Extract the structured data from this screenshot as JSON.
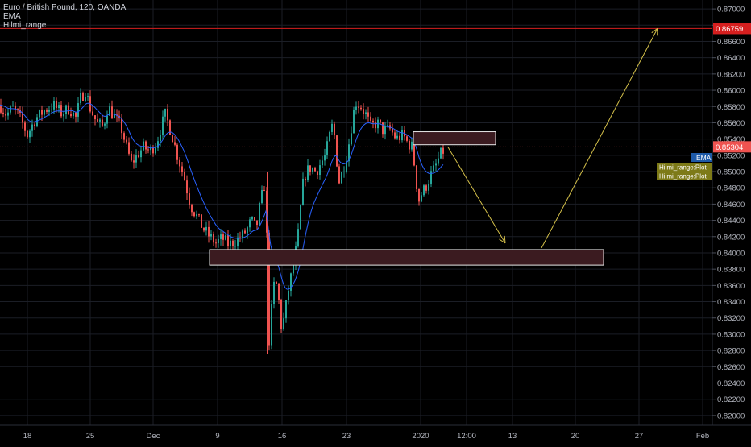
{
  "legend": {
    "symbol_line": "Euro / British Pound, 120, OANDA",
    "ema_label": "EMA",
    "range_label": "Hilmi_range"
  },
  "colors": {
    "background": "#000000",
    "grid": "#1b1e26",
    "up_candle": "#26a69a",
    "down_candle": "#ef5350",
    "ema_line": "#2962ff",
    "red_level": "#d61f1f",
    "arrow": "#d4c04a",
    "zone_fill": "#3b1b20",
    "zone_border": "#e8e8e8",
    "axis_text": "#b2b5be",
    "ema_tag": "#1e5aa8",
    "plot_tag": "#7d7a17"
  },
  "icons": {
    "arrow_up": "arrow-up-icon",
    "arrow_down": "arrow-down-icon"
  },
  "price_axis": {
    "ticks": [
      "0.87000",
      "0.86800",
      "0.86600",
      "0.86400",
      "0.86200",
      "0.86000",
      "0.85800",
      "0.85600",
      "0.85400",
      "0.85200",
      "0.85000",
      "0.84800",
      "0.84600",
      "0.84400",
      "0.84200",
      "0.84000",
      "0.83800",
      "0.83600",
      "0.83400",
      "0.83200",
      "0.83000",
      "0.82800",
      "0.82600",
      "0.82400",
      "0.82200",
      "0.82000"
    ],
    "red_level_label": "0.86759",
    "last_price_label": "0.85304",
    "ema_tag": "EMA",
    "plot_tags": [
      "Hilmi_range:Plot",
      "Hilmi_range:Plot"
    ]
  },
  "time_axis": {
    "labels": [
      "18",
      "25",
      "Dec",
      "9",
      "16",
      "23",
      "2020",
      "12:00",
      "13",
      "20",
      "27",
      "Feb"
    ]
  },
  "chart_data": {
    "type": "candlestick",
    "title": "Euro / British Pound, 120, OANDA",
    "xlabel": "",
    "ylabel": "",
    "ylim": [
      0.8188,
      0.8711
    ],
    "grid": true,
    "legend_position": "top-left",
    "series": [
      {
        "name": "EMA",
        "type": "line"
      },
      {
        "name": "Hilmi_range",
        "type": "level",
        "value": 0.86759
      }
    ],
    "last_price": 0.85304,
    "close_path": [
      [
        0,
        0.8582
      ],
      [
        8,
        0.857
      ],
      [
        16,
        0.8578
      ],
      [
        24,
        0.8568
      ],
      [
        34,
        0.8545
      ],
      [
        44,
        0.8565
      ],
      [
        55,
        0.8575
      ],
      [
        66,
        0.8582
      ],
      [
        76,
        0.8572
      ],
      [
        86,
        0.8578
      ],
      [
        94,
        0.8566
      ],
      [
        100,
        0.859
      ],
      [
        106,
        0.86
      ],
      [
        112,
        0.8578
      ],
      [
        120,
        0.856
      ],
      [
        128,
        0.8555
      ],
      [
        134,
        0.858
      ],
      [
        140,
        0.857
      ],
      [
        150,
        0.8555
      ],
      [
        157,
        0.853
      ],
      [
        163,
        0.851
      ],
      [
        170,
        0.852
      ],
      [
        178,
        0.853
      ],
      [
        186,
        0.8525
      ],
      [
        194,
        0.8535
      ],
      [
        200,
        0.8555
      ],
      [
        205,
        0.857
      ],
      [
        212,
        0.855
      ],
      [
        220,
        0.852
      ],
      [
        228,
        0.8495
      ],
      [
        236,
        0.846
      ],
      [
        244,
        0.8445
      ],
      [
        252,
        0.843
      ],
      [
        260,
        0.842
      ],
      [
        268,
        0.8412
      ],
      [
        276,
        0.8418
      ],
      [
        284,
        0.841
      ],
      [
        292,
        0.8415
      ],
      [
        300,
        0.842
      ],
      [
        306,
        0.8428
      ],
      [
        312,
        0.844
      ],
      [
        318,
        0.843
      ],
      [
        322,
        0.8455
      ],
      [
        326,
        0.8475
      ],
      [
        330,
        0.849
      ],
      [
        333,
        0.828
      ],
      [
        337,
        0.833
      ],
      [
        341,
        0.837
      ],
      [
        345,
        0.835
      ],
      [
        349,
        0.831
      ],
      [
        353,
        0.832
      ],
      [
        357,
        0.835
      ],
      [
        361,
        0.837
      ],
      [
        366,
        0.8395
      ],
      [
        371,
        0.843
      ],
      [
        375,
        0.848
      ],
      [
        380,
        0.85
      ],
      [
        386,
        0.8505
      ],
      [
        392,
        0.85
      ],
      [
        398,
        0.851
      ],
      [
        404,
        0.852
      ],
      [
        408,
        0.854
      ],
      [
        412,
        0.8555
      ],
      [
        416,
        0.854
      ],
      [
        420,
        0.8485
      ],
      [
        425,
        0.85
      ],
      [
        430,
        0.852
      ],
      [
        434,
        0.854
      ],
      [
        438,
        0.857
      ],
      [
        442,
        0.8585
      ],
      [
        448,
        0.858
      ],
      [
        454,
        0.857
      ],
      [
        460,
        0.8555
      ],
      [
        468,
        0.856
      ],
      [
        476,
        0.855
      ],
      [
        484,
        0.8552
      ],
      [
        492,
        0.854
      ],
      [
        500,
        0.8545
      ],
      [
        506,
        0.8535
      ],
      [
        512,
        0.853
      ],
      [
        516,
        0.849
      ],
      [
        520,
        0.8465
      ],
      [
        524,
        0.8475
      ],
      [
        528,
        0.848
      ],
      [
        534,
        0.8495
      ],
      [
        540,
        0.8505
      ],
      [
        546,
        0.852
      ],
      [
        550,
        0.8525
      ]
    ],
    "zones": [
      {
        "name": "upper-zone",
        "low": 0.8533,
        "high": 0.8549
      },
      {
        "name": "lower-zone",
        "low": 0.8385,
        "high": 0.8404
      }
    ],
    "projection": [
      {
        "from": "0.8530",
        "to": "0.8412"
      },
      {
        "from": "0.8412",
        "to": "0.8676"
      }
    ]
  }
}
